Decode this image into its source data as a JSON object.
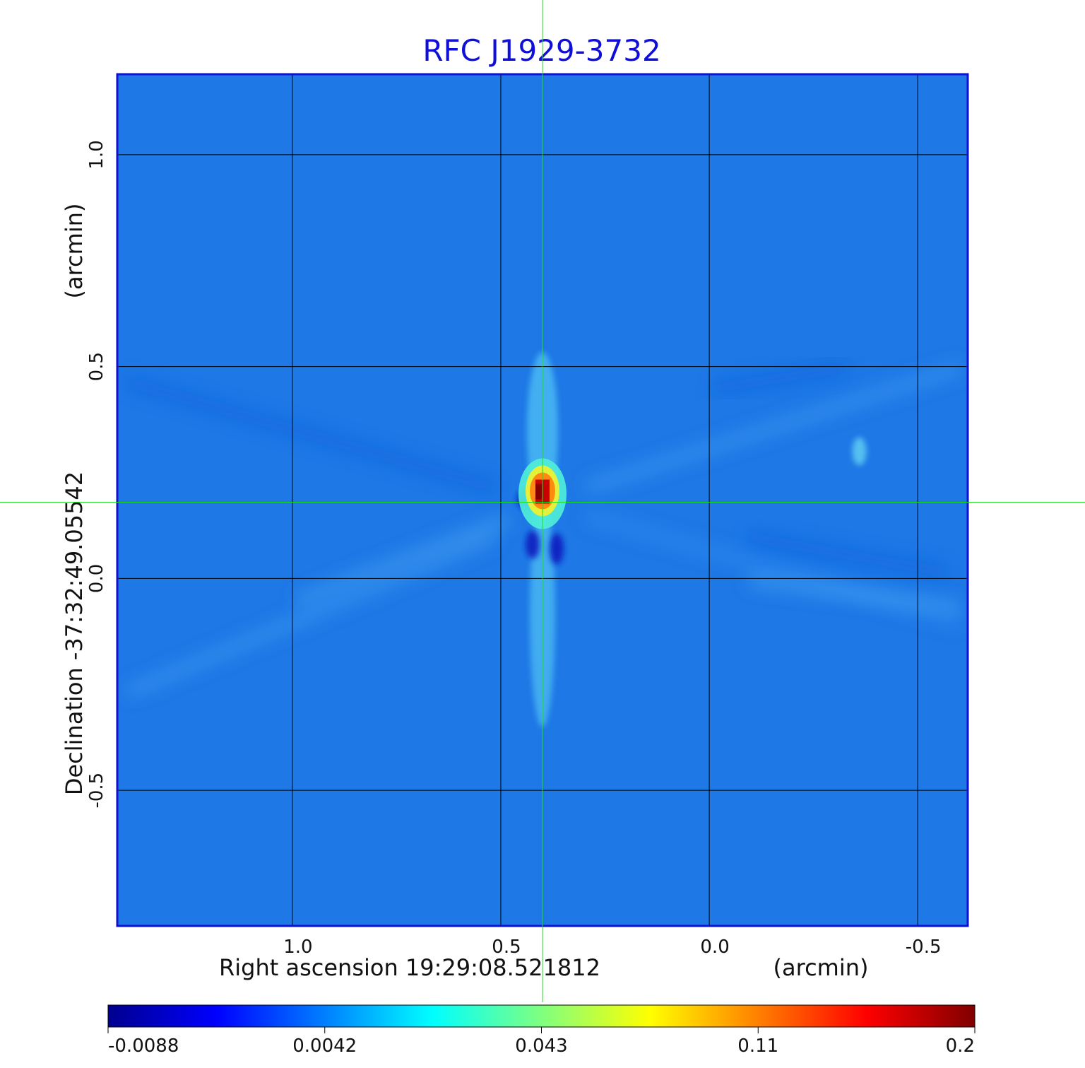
{
  "chart_data": {
    "type": "heatmap",
    "title": "RFC J1929-3732",
    "xlabel": "Right ascension  19:29:08.521812",
    "xunit": "(arcmin)",
    "ylabel": "Declination  -37:32:49.05542",
    "yunit": "(arcmin)",
    "x_ticks": [
      {
        "label": "1.0",
        "value": 1.0
      },
      {
        "label": "0.5",
        "value": 0.5
      },
      {
        "label": "0.0",
        "value": 0.0
      },
      {
        "label": "-0.5",
        "value": -0.5
      }
    ],
    "y_ticks": [
      {
        "label": "1.0",
        "value": 1.0
      },
      {
        "label": "0.5",
        "value": 0.5
      },
      {
        "label": "0.0",
        "value": 0.0
      },
      {
        "label": "-0.5",
        "value": -0.5
      }
    ],
    "xlim": [
      1.42,
      -0.62
    ],
    "ylim": [
      -0.82,
      1.19
    ],
    "x_reversed": true,
    "grid": true,
    "crosshair": {
      "x": 0.4,
      "y": 0.18
    },
    "peak": {
      "x": 0.4,
      "y": 0.2,
      "value": 0.2
    },
    "secondary_source": {
      "x": -0.36,
      "y": 0.3
    },
    "colorbar": {
      "position": "bottom",
      "tick_labels": [
        "-0.0088",
        "0.0042",
        "0.043",
        "0.11",
        "0.2"
      ],
      "colormap": "jet"
    },
    "colors": {
      "title": "#0f0fd8",
      "background_field": "#1e78e6",
      "frame": "#1010d0",
      "grid": "#000000",
      "crosshair": "#22dd22"
    }
  }
}
